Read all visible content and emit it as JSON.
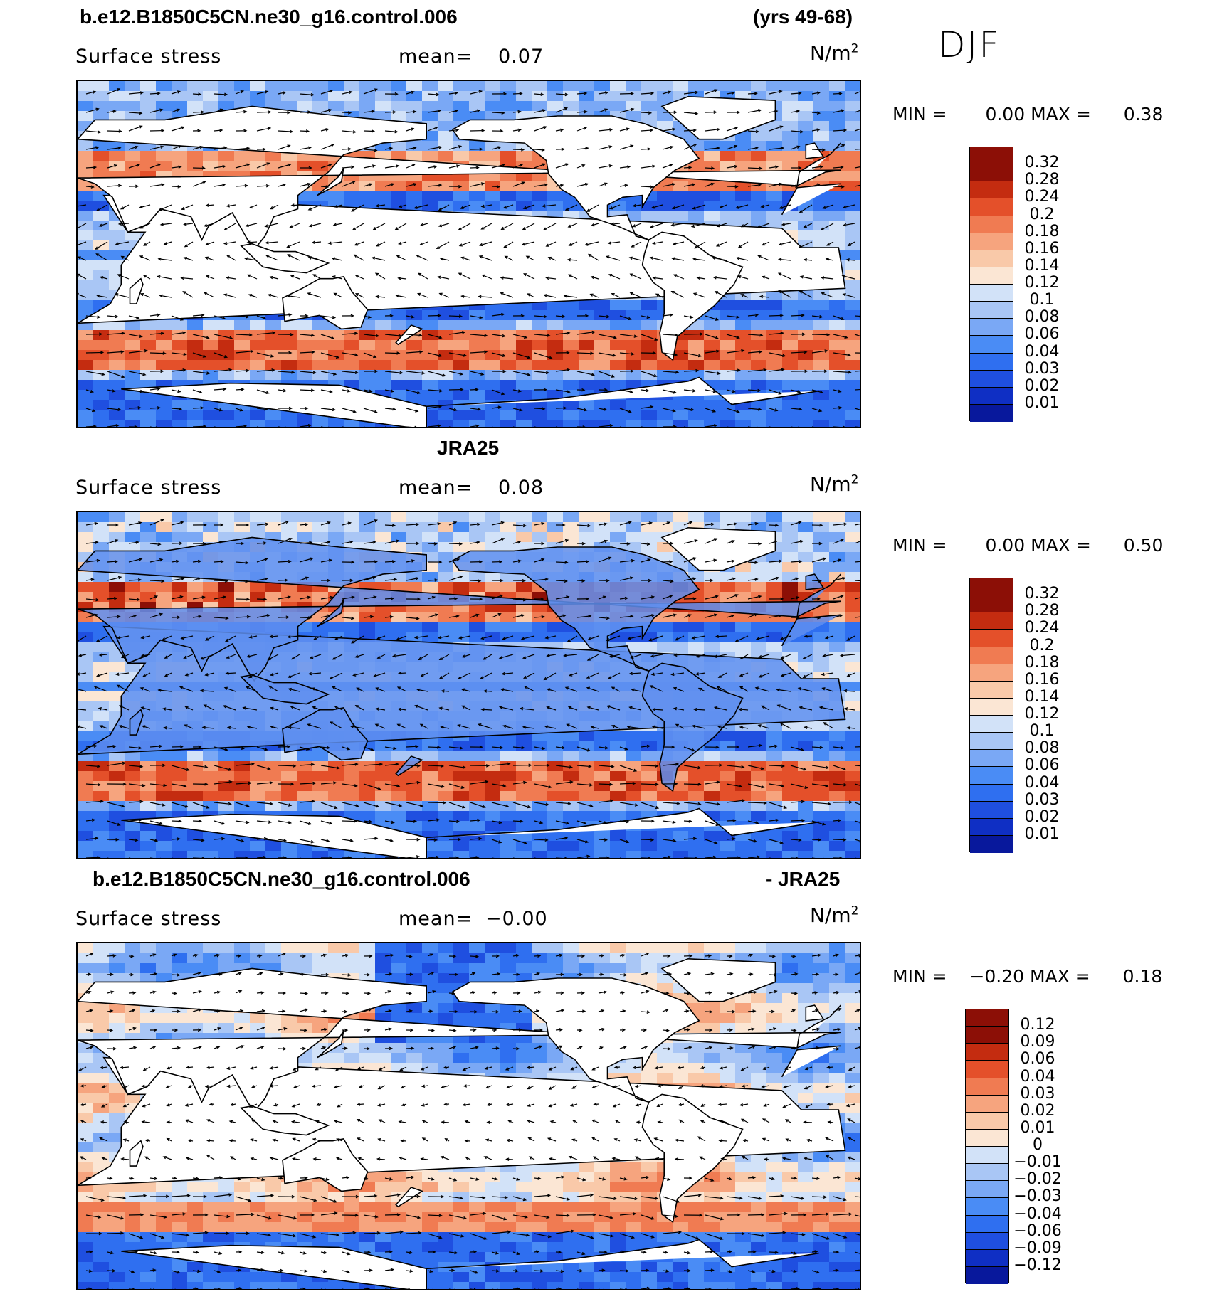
{
  "header": {
    "case_title": "b.e12.B1850C5CN.ne30_g16.control.006",
    "years": "(yrs 49-68)",
    "season": "DJF"
  },
  "panels": [
    {
      "id": "model",
      "title": "",
      "variable": "Surface stress",
      "mean_label": "mean=",
      "mean_value": "0.07",
      "units": "N/m",
      "units_sup": "2",
      "min_label": "MIN =",
      "min_value": "0.00",
      "max_label": "MAX =",
      "max_value": "0.38",
      "colorbar_labels": [
        "0.32",
        "0.28",
        "0.24",
        "0.2",
        "0.18",
        "0.16",
        "0.14",
        "0.12",
        "0.1",
        "0.08",
        "0.06",
        "0.04",
        "0.03",
        "0.02",
        "0.01"
      ]
    },
    {
      "id": "obs",
      "title": "JRA25",
      "variable": "Surface stress",
      "mean_label": "mean=",
      "mean_value": "0.08",
      "units": "N/m",
      "units_sup": "2",
      "min_label": "MIN =",
      "min_value": "0.00",
      "max_label": "MAX =",
      "max_value": "0.50",
      "colorbar_labels": [
        "0.32",
        "0.28",
        "0.24",
        "0.2",
        "0.18",
        "0.16",
        "0.14",
        "0.12",
        "0.1",
        "0.08",
        "0.06",
        "0.04",
        "0.03",
        "0.02",
        "0.01"
      ]
    },
    {
      "id": "diff",
      "title_left": "b.e12.B1850C5CN.ne30_g16.control.006",
      "title_right": "- JRA25",
      "variable": "Surface stress",
      "mean_label": "mean=",
      "mean_value": "−0.00",
      "units": "N/m",
      "units_sup": "2",
      "min_label": "MIN =",
      "min_value": "−0.20",
      "max_label": "MAX =",
      "max_value": "0.18",
      "colorbar_labels": [
        "0.12",
        "0.09",
        "0.06",
        "0.04",
        "0.03",
        "0.02",
        "0.01",
        "0",
        "−0.01",
        "−0.02",
        "−0.03",
        "−0.04",
        "−0.06",
        "−0.09",
        "−0.12"
      ]
    }
  ],
  "chart_data": {
    "type": "heatmap",
    "description_fields": "Three global maps of DJF surface wind stress with vector arrows",
    "colorbar_abs": {
      "levels": [
        0.01,
        0.02,
        0.03,
        0.04,
        0.06,
        0.08,
        0.1,
        0.12,
        0.14,
        0.16,
        0.18,
        0.2,
        0.24,
        0.28,
        0.32
      ],
      "colors": [
        "#08189c",
        "#0f2fc4",
        "#1f4fe0",
        "#2f6ff0",
        "#4a8cf5",
        "#7aa8f5",
        "#a9c6f5",
        "#d2e2f8",
        "#fbe6d4",
        "#f9c9a9",
        "#f6a47e",
        "#f07b52",
        "#e4502a",
        "#c42c10",
        "#8c0f06"
      ]
    },
    "colorbar_diff": {
      "levels": [
        -0.12,
        -0.09,
        -0.06,
        -0.04,
        -0.03,
        -0.02,
        -0.01,
        0,
        0.01,
        0.02,
        0.03,
        0.04,
        0.06,
        0.09,
        0.12
      ],
      "colors": [
        "#08189c",
        "#0f2fc4",
        "#1f4fe0",
        "#2f6ff0",
        "#4a8cf5",
        "#7aa8f5",
        "#a9c6f5",
        "#d2e2f8",
        "#fbe6d4",
        "#f9c9a9",
        "#f6a47e",
        "#f07b52",
        "#e4502a",
        "#c42c10",
        "#8c0f06"
      ]
    }
  }
}
